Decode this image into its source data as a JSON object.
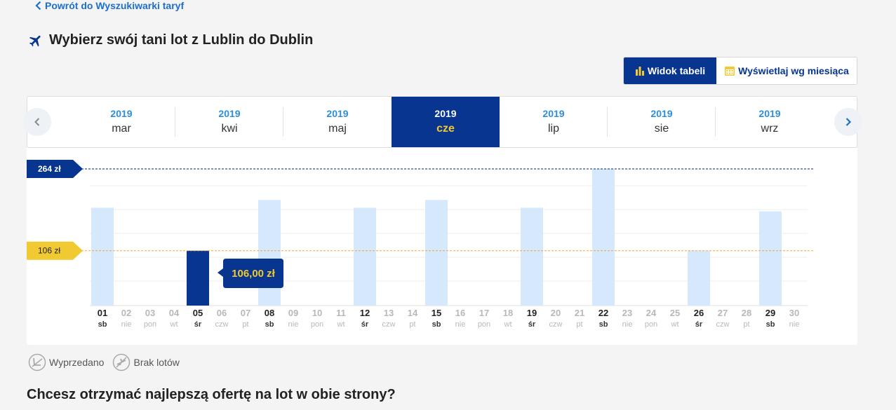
{
  "header": {
    "back_label": "Powrót do Wyszukiwarki taryf",
    "title": "Wybierz swój tani lot z Lublin do Dublin"
  },
  "view_toggle": {
    "table_label": "Widok tabeli",
    "month_label": "Wyświetlaj wg miesiąca",
    "active": "table"
  },
  "months": [
    {
      "year": "2019",
      "month": "mar",
      "selected": false
    },
    {
      "year": "2019",
      "month": "kwi",
      "selected": false
    },
    {
      "year": "2019",
      "month": "maj",
      "selected": false
    },
    {
      "year": "2019",
      "month": "cze",
      "selected": true
    },
    {
      "year": "2019",
      "month": "lip",
      "selected": false
    },
    {
      "year": "2019",
      "month": "sie",
      "selected": false
    },
    {
      "year": "2019",
      "month": "wrz",
      "selected": false
    }
  ],
  "chart_data": {
    "type": "bar",
    "max_label": "264 zł",
    "min_label": "106 zł",
    "max_value": 264,
    "min_value": 106,
    "selected_day": "05",
    "selected_tooltip": "106,00 zł",
    "days": [
      {
        "day": "01",
        "weekday": "sb",
        "value": 189
      },
      {
        "day": "02",
        "weekday": "nie",
        "value": null
      },
      {
        "day": "03",
        "weekday": "pon",
        "value": null
      },
      {
        "day": "04",
        "weekday": "wt",
        "value": null
      },
      {
        "day": "05",
        "weekday": "śr",
        "value": 106
      },
      {
        "day": "06",
        "weekday": "czw",
        "value": null
      },
      {
        "day": "07",
        "weekday": "pt",
        "value": null
      },
      {
        "day": "08",
        "weekday": "sb",
        "value": 204
      },
      {
        "day": "09",
        "weekday": "nie",
        "value": null
      },
      {
        "day": "10",
        "weekday": "pon",
        "value": null
      },
      {
        "day": "11",
        "weekday": "wt",
        "value": null
      },
      {
        "day": "12",
        "weekday": "śr",
        "value": 189
      },
      {
        "day": "13",
        "weekday": "czw",
        "value": null
      },
      {
        "day": "14",
        "weekday": "pt",
        "value": null
      },
      {
        "day": "15",
        "weekday": "sb",
        "value": 204
      },
      {
        "day": "16",
        "weekday": "nie",
        "value": null
      },
      {
        "day": "17",
        "weekday": "pon",
        "value": null
      },
      {
        "day": "18",
        "weekday": "wt",
        "value": null
      },
      {
        "day": "19",
        "weekday": "śr",
        "value": 189
      },
      {
        "day": "20",
        "weekday": "czw",
        "value": null
      },
      {
        "day": "21",
        "weekday": "pt",
        "value": null
      },
      {
        "day": "22",
        "weekday": "sb",
        "value": 264
      },
      {
        "day": "23",
        "weekday": "nie",
        "value": null
      },
      {
        "day": "24",
        "weekday": "pon",
        "value": null
      },
      {
        "day": "25",
        "weekday": "wt",
        "value": null
      },
      {
        "day": "26",
        "weekday": "śr",
        "value": 106
      },
      {
        "day": "27",
        "weekday": "czw",
        "value": null
      },
      {
        "day": "28",
        "weekday": "pt",
        "value": null
      },
      {
        "day": "29",
        "weekday": "sb",
        "value": 182
      },
      {
        "day": "30",
        "weekday": "nie",
        "value": null
      }
    ]
  },
  "legend": {
    "sold_out": "Wyprzedano",
    "no_flights": "Brak lotów"
  },
  "subheading": "Chcesz otrzymać najlepszą ofertę na lot w obie strony?",
  "colors": {
    "navy": "#073590",
    "yellow": "#f1c932",
    "bar_light": "#d6e8fb",
    "link": "#1d6fcc"
  }
}
